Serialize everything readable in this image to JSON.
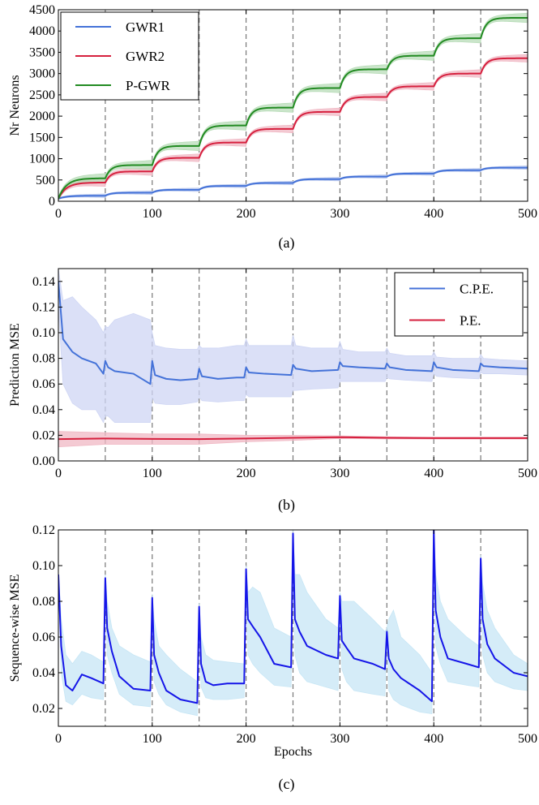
{
  "chart_data": [
    {
      "panel_label": "(a)",
      "type": "line",
      "ylabel": "Nr Neurons",
      "xlabel": "",
      "xlim": [
        0,
        500
      ],
      "ylim": [
        0,
        4500
      ],
      "xticks": [
        0,
        100,
        200,
        300,
        400,
        500
      ],
      "yticks": [
        0,
        500,
        1000,
        1500,
        2000,
        2500,
        3000,
        3500,
        4000,
        4500
      ],
      "vlines": [
        50,
        100,
        150,
        200,
        250,
        300,
        350,
        400,
        450
      ],
      "legend": "top-left",
      "series": [
        {
          "name": "GWR1",
          "color": "#4472d8",
          "band_color": "#b9c8ee",
          "step_values": [
            130,
            200,
            270,
            360,
            430,
            520,
            580,
            650,
            730,
            790
          ],
          "band": 40
        },
        {
          "name": "GWR2",
          "color": "#d6203e",
          "band_color": "#f0b8c4",
          "step_values": [
            440,
            700,
            1020,
            1380,
            1700,
            2100,
            2450,
            2700,
            3000,
            3360
          ],
          "band": 90
        },
        {
          "name": "P-GWR",
          "color": "#228b22",
          "band_color": "#b8dcb8",
          "step_values": [
            540,
            850,
            1300,
            1780,
            2200,
            2660,
            3100,
            3420,
            3830,
            4310
          ],
          "band": 110
        }
      ]
    },
    {
      "panel_label": "(b)",
      "type": "line",
      "ylabel": "Prediction MSE",
      "xlabel": "",
      "xlim": [
        0,
        500
      ],
      "ylim": [
        0,
        0.15
      ],
      "xticks": [
        0,
        100,
        200,
        300,
        400,
        500
      ],
      "yticks": [
        "0.00",
        "0.02",
        "0.04",
        "0.06",
        "0.08",
        "0.10",
        "0.12",
        "0.14"
      ],
      "vlines": [
        50,
        100,
        150,
        200,
        250,
        300,
        350,
        400,
        450
      ],
      "legend": "top-right",
      "series": [
        {
          "name": "C.P.E.",
          "color": "#4472d8",
          "band_color": "#cfd6f4",
          "x": [
            0,
            5,
            15,
            25,
            40,
            48,
            50,
            53,
            60,
            80,
            98,
            100,
            103,
            115,
            130,
            148,
            150,
            153,
            170,
            190,
            198,
            200,
            203,
            220,
            248,
            250,
            253,
            270,
            298,
            300,
            303,
            320,
            348,
            350,
            353,
            370,
            398,
            400,
            403,
            420,
            448,
            450,
            453,
            470,
            500
          ],
          "values": [
            0.14,
            0.095,
            0.085,
            0.08,
            0.076,
            0.068,
            0.078,
            0.073,
            0.07,
            0.068,
            0.06,
            0.078,
            0.067,
            0.064,
            0.063,
            0.064,
            0.072,
            0.066,
            0.064,
            0.065,
            0.065,
            0.073,
            0.069,
            0.068,
            0.067,
            0.075,
            0.072,
            0.07,
            0.071,
            0.077,
            0.074,
            0.073,
            0.072,
            0.076,
            0.073,
            0.071,
            0.07,
            0.077,
            0.073,
            0.071,
            0.07,
            0.076,
            0.074,
            0.073,
            0.072
          ],
          "upper": [
            0.15,
            0.125,
            0.128,
            0.12,
            0.11,
            0.1,
            0.105,
            0.104,
            0.11,
            0.115,
            0.11,
            0.1,
            0.09,
            0.088,
            0.087,
            0.087,
            0.09,
            0.088,
            0.088,
            0.09,
            0.09,
            0.095,
            0.09,
            0.09,
            0.09,
            0.098,
            0.09,
            0.088,
            0.088,
            0.093,
            0.087,
            0.085,
            0.085,
            0.088,
            0.084,
            0.082,
            0.082,
            0.085,
            0.081,
            0.08,
            0.08,
            0.083,
            0.08,
            0.079,
            0.078
          ],
          "lower": [
            0.12,
            0.06,
            0.045,
            0.04,
            0.04,
            0.03,
            0.035,
            0.035,
            0.03,
            0.03,
            0.03,
            0.05,
            0.045,
            0.044,
            0.044,
            0.046,
            0.05,
            0.047,
            0.046,
            0.047,
            0.047,
            0.052,
            0.05,
            0.05,
            0.05,
            0.055,
            0.055,
            0.056,
            0.057,
            0.062,
            0.062,
            0.062,
            0.062,
            0.065,
            0.064,
            0.063,
            0.062,
            0.068,
            0.066,
            0.065,
            0.064,
            0.069,
            0.068,
            0.068,
            0.067
          ]
        },
        {
          "name": "P.E.",
          "color": "#d6203e",
          "band_color": "#f0b8c4",
          "x": [
            0,
            50,
            100,
            150,
            200,
            250,
            300,
            350,
            400,
            450,
            500
          ],
          "values": [
            0.017,
            0.0175,
            0.0172,
            0.017,
            0.0175,
            0.018,
            0.0185,
            0.018,
            0.0178,
            0.0178,
            0.0178
          ],
          "upper": [
            0.023,
            0.022,
            0.021,
            0.021,
            0.02,
            0.02,
            0.0195,
            0.0188,
            0.0185,
            0.0185,
            0.0185
          ],
          "lower": [
            0.011,
            0.013,
            0.013,
            0.013,
            0.015,
            0.016,
            0.0175,
            0.0172,
            0.0171,
            0.0171,
            0.0171
          ]
        }
      ]
    },
    {
      "panel_label": "(c)",
      "type": "line",
      "ylabel": "Sequence-wise MSE",
      "xlabel": "Epochs",
      "xlim": [
        0,
        500
      ],
      "ylim": [
        0.01,
        0.12
      ],
      "xticks": [
        0,
        100,
        200,
        300,
        400,
        500
      ],
      "yticks": [
        "0.02",
        "0.04",
        "0.06",
        "0.08",
        "0.10",
        "0.12"
      ],
      "vlines": [
        50,
        100,
        150,
        200,
        250,
        300,
        350,
        400,
        450
      ],
      "series": [
        {
          "name": "",
          "color": "#1515e8",
          "band_color": "#c7e6f5",
          "x": [
            0,
            3,
            8,
            15,
            25,
            35,
            48,
            50,
            52,
            57,
            65,
            80,
            98,
            100,
            102,
            107,
            115,
            130,
            148,
            150,
            152,
            157,
            165,
            180,
            198,
            200,
            202,
            207,
            215,
            230,
            248,
            250,
            252,
            257,
            265,
            285,
            298,
            300,
            302,
            307,
            315,
            335,
            348,
            350,
            352,
            357,
            365,
            385,
            398,
            400,
            402,
            407,
            415,
            435,
            448,
            450,
            452,
            457,
            465,
            485,
            500
          ],
          "values": [
            0.095,
            0.055,
            0.033,
            0.03,
            0.039,
            0.037,
            0.034,
            0.093,
            0.065,
            0.052,
            0.038,
            0.031,
            0.03,
            0.082,
            0.05,
            0.04,
            0.03,
            0.025,
            0.023,
            0.077,
            0.045,
            0.035,
            0.033,
            0.034,
            0.034,
            0.098,
            0.07,
            0.066,
            0.06,
            0.045,
            0.043,
            0.118,
            0.07,
            0.063,
            0.055,
            0.05,
            0.048,
            0.083,
            0.058,
            0.054,
            0.048,
            0.045,
            0.042,
            0.063,
            0.048,
            0.042,
            0.037,
            0.03,
            0.024,
            0.12,
            0.075,
            0.06,
            0.048,
            0.045,
            0.043,
            0.104,
            0.07,
            0.056,
            0.048,
            0.04,
            0.038
          ],
          "upper": [
            0.097,
            0.07,
            0.05,
            0.045,
            0.052,
            0.05,
            0.046,
            0.095,
            0.08,
            0.065,
            0.055,
            0.05,
            0.046,
            0.084,
            0.07,
            0.055,
            0.05,
            0.042,
            0.035,
            0.079,
            0.06,
            0.05,
            0.047,
            0.046,
            0.045,
            0.1,
            0.085,
            0.088,
            0.085,
            0.065,
            0.06,
            0.12,
            0.095,
            0.095,
            0.085,
            0.07,
            0.065,
            0.085,
            0.08,
            0.08,
            0.08,
            0.07,
            0.063,
            0.065,
            0.07,
            0.075,
            0.06,
            0.05,
            0.04,
            0.12,
            0.095,
            0.08,
            0.07,
            0.06,
            0.055,
            0.106,
            0.09,
            0.075,
            0.065,
            0.05,
            0.045
          ],
          "lower": [
            0.093,
            0.04,
            0.024,
            0.022,
            0.028,
            0.026,
            0.025,
            0.09,
            0.05,
            0.04,
            0.028,
            0.022,
            0.021,
            0.08,
            0.035,
            0.028,
            0.022,
            0.018,
            0.016,
            0.075,
            0.032,
            0.026,
            0.025,
            0.025,
            0.026,
            0.096,
            0.05,
            0.045,
            0.04,
            0.033,
            0.032,
            0.116,
            0.05,
            0.04,
            0.035,
            0.032,
            0.03,
            0.081,
            0.042,
            0.035,
            0.03,
            0.028,
            0.027,
            0.061,
            0.03,
            0.025,
            0.022,
            0.018,
            0.017,
            0.118,
            0.055,
            0.045,
            0.035,
            0.033,
            0.032,
            0.102,
            0.05,
            0.04,
            0.035,
            0.031,
            0.03
          ]
        }
      ]
    }
  ]
}
